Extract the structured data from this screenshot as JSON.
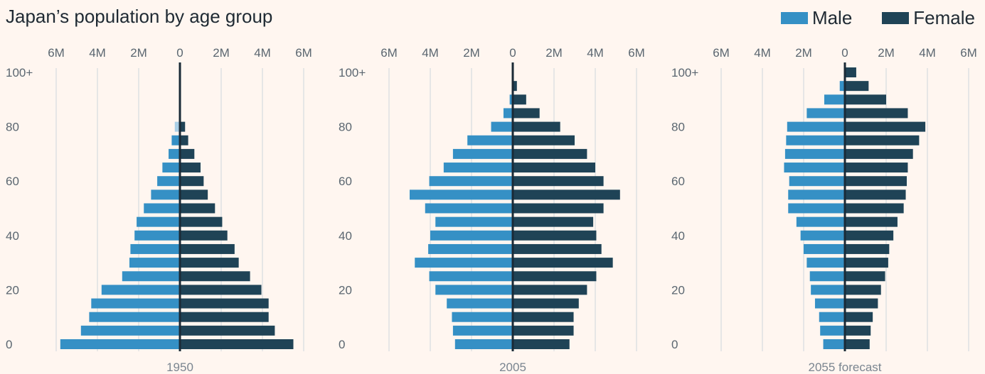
{
  "title": "Japan’s population by age group",
  "legend": {
    "male_label": "Male",
    "female_label": "Female"
  },
  "colors": {
    "male": "#3590c5",
    "male_faded": "#a9cfe6",
    "female": "#1f4356",
    "grid": "#e6e6e6",
    "axis": "#1a2a36"
  },
  "chart_data": {
    "type": "bar",
    "orientation": "horizontal-diverging",
    "unit": "people",
    "x_ticks": [
      "6M",
      "4M",
      "2M",
      "0",
      "2M",
      "4M",
      "6M"
    ],
    "x_tick_values": [
      -6,
      -4,
      -2,
      0,
      2,
      4,
      6
    ],
    "xlim": [
      -6,
      6
    ],
    "y_ticks": [
      "0",
      "20",
      "40",
      "60",
      "80",
      "100+"
    ],
    "categories": [
      "0",
      "5",
      "10",
      "15",
      "20",
      "25",
      "30",
      "35",
      "40",
      "45",
      "50",
      "55",
      "60",
      "65",
      "70",
      "75",
      "80",
      "85",
      "90",
      "95",
      "100+"
    ],
    "grid": true,
    "legend_position": "top-right",
    "panels": [
      {
        "label": "1950",
        "male": [
          5.8,
          4.8,
          4.4,
          4.3,
          3.8,
          2.8,
          2.45,
          2.4,
          2.2,
          2.1,
          1.75,
          1.4,
          1.1,
          0.85,
          0.55,
          0.4,
          0.25,
          0,
          0,
          0,
          0
        ],
        "female": [
          5.5,
          4.6,
          4.3,
          4.3,
          3.95,
          3.4,
          2.85,
          2.65,
          2.3,
          2.05,
          1.7,
          1.35,
          1.15,
          1.0,
          0.7,
          0.4,
          0.25,
          0,
          0,
          0,
          0
        ]
      },
      {
        "label": "2005",
        "male": [
          2.8,
          2.9,
          2.95,
          3.2,
          3.75,
          4.05,
          4.75,
          4.1,
          4.0,
          3.75,
          4.25,
          5.0,
          4.05,
          3.35,
          2.9,
          2.2,
          1.05,
          0.45,
          0.15,
          0.05,
          0
        ],
        "female": [
          2.75,
          2.95,
          2.95,
          3.2,
          3.6,
          4.05,
          4.85,
          4.3,
          4.05,
          3.9,
          4.4,
          5.2,
          4.4,
          4.0,
          3.6,
          3.0,
          2.3,
          1.3,
          0.65,
          0.2,
          0
        ]
      },
      {
        "label": "2055 forecast",
        "male": [
          1.05,
          1.2,
          1.25,
          1.45,
          1.65,
          1.7,
          1.85,
          2.0,
          2.15,
          2.35,
          2.75,
          2.75,
          2.7,
          2.95,
          2.9,
          2.85,
          2.8,
          1.85,
          1.0,
          0.25,
          0
        ],
        "female": [
          1.2,
          1.25,
          1.35,
          1.6,
          1.75,
          1.95,
          2.1,
          2.15,
          2.35,
          2.55,
          2.85,
          2.95,
          3.0,
          3.05,
          3.3,
          3.6,
          3.9,
          3.05,
          2.0,
          1.15,
          0.55
        ]
      }
    ]
  }
}
